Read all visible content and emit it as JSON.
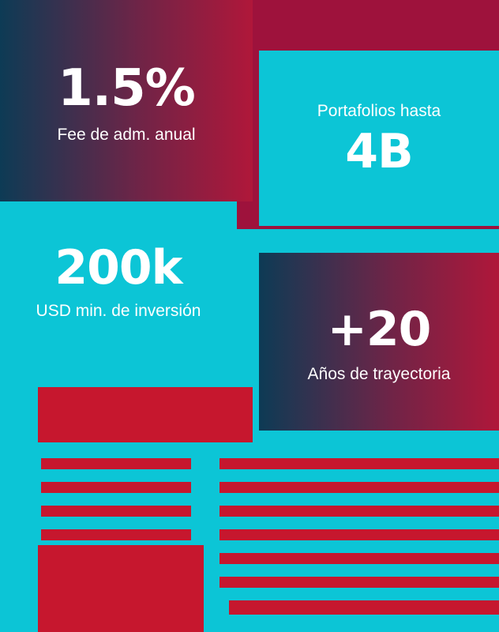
{
  "colors": {
    "cyan": "#0cc5d6",
    "crimson": "#c6172e",
    "magenta_red": "#9e123c",
    "navy": "#0d3b55",
    "white": "#ffffff"
  },
  "stats": [
    {
      "value": "1.5%",
      "label": "Fee de adm. anual",
      "style": "gradient"
    },
    {
      "label": "Portafolios hasta",
      "value": "4B",
      "style": "cyan"
    },
    {
      "value": "200k",
      "label": "USD min. de inversión",
      "style": "cyan"
    },
    {
      "value": "+20",
      "label": "Años de trayectoria",
      "style": "gradient"
    }
  ]
}
